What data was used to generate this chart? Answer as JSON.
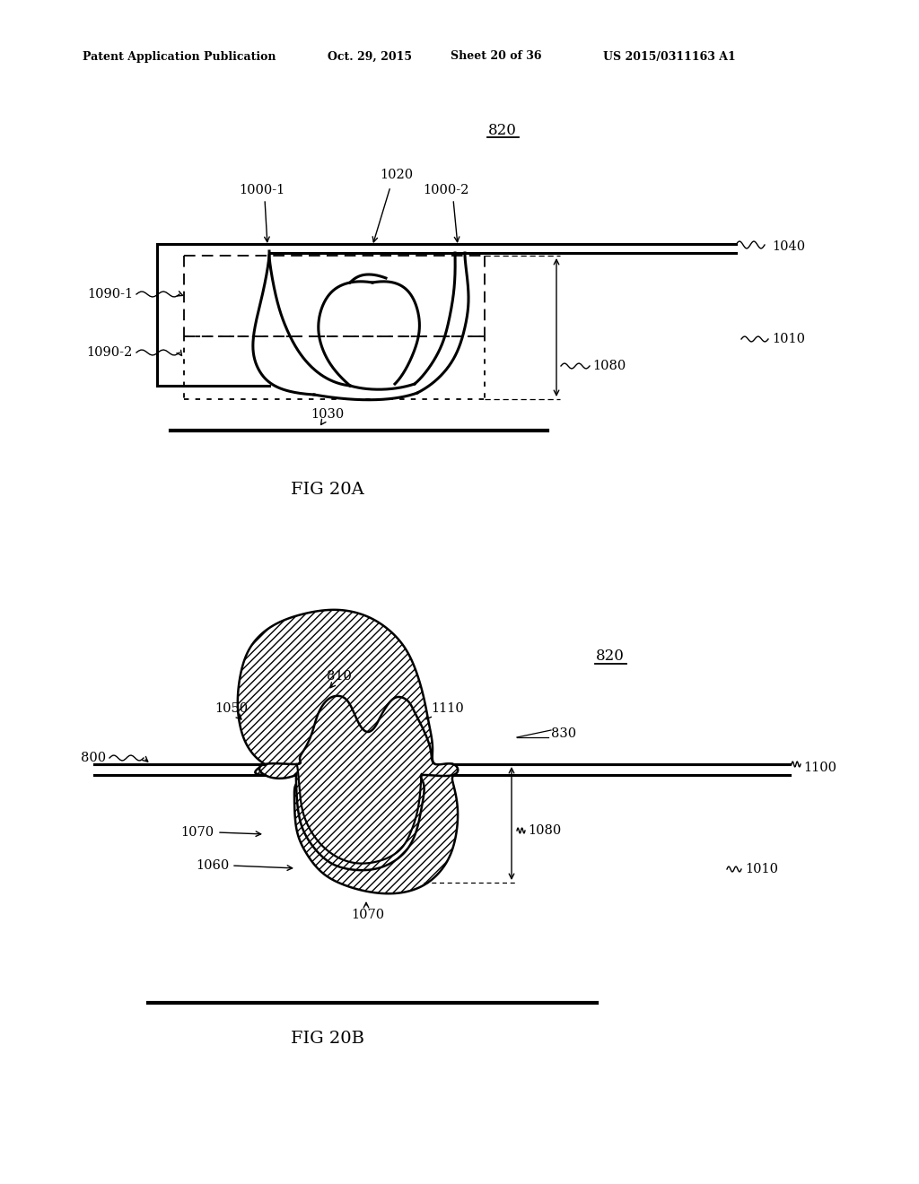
{
  "bg_color": "#ffffff",
  "header_text": "Patent Application Publication",
  "header_date": "Oct. 29, 2015",
  "header_sheet": "Sheet 20 of 36",
  "header_patent": "US 2015/0311163 A1",
  "fig_a_label": "FIG 20A",
  "fig_b_label": "FIG 20B",
  "lw_main": 2.2,
  "lw_thin": 1.2,
  "lw_thick": 3.0
}
